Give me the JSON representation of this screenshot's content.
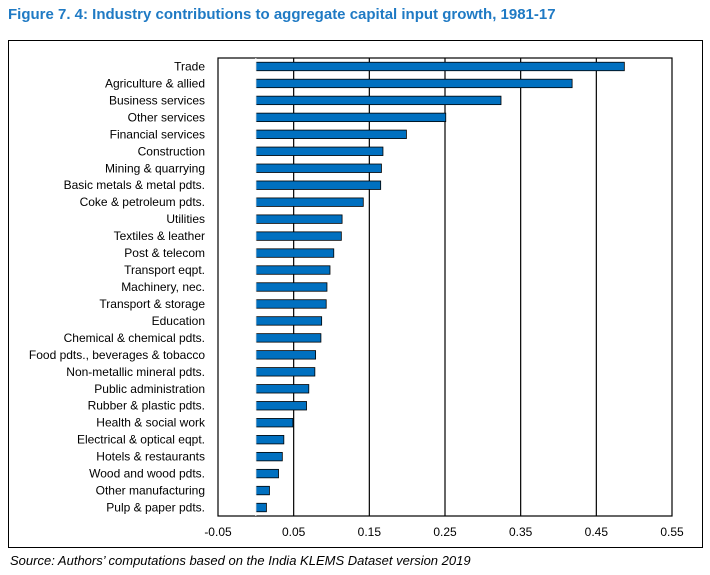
{
  "title": "Figure 7. 4: Industry contributions to aggregate capital input growth, 1981-17",
  "source": "Source: Authors’ computations based on the India KLEMS Dataset version 2019",
  "chart_data": {
    "type": "bar",
    "orientation": "horizontal",
    "categories": [
      "Trade",
      "Agriculture & allied",
      "Business services",
      "Other services",
      "Financial services",
      "Construction",
      "Mining & quarrying",
      "Basic metals & metal pdts.",
      "Coke & petroleum pdts.",
      "Utilities",
      "Textiles & leather",
      "Post & telecom",
      "Transport eqpt.",
      "Machinery, nec.",
      "Transport & storage",
      "Education",
      "Chemical & chemical pdts.",
      "Food pdts., beverages & tobacco",
      "Non-metallic mineral pdts.",
      "Public administration",
      "Rubber & plastic pdts.",
      "Health & social work",
      "Electrical & optical eqpt.",
      "Hotels & restaurants",
      "Wood and wood pdts.",
      "Other manufacturing",
      "Pulp & paper pdts."
    ],
    "values": [
      0.487,
      0.418,
      0.324,
      0.251,
      0.199,
      0.168,
      0.166,
      0.165,
      0.142,
      0.114,
      0.113,
      0.103,
      0.098,
      0.094,
      0.093,
      0.087,
      0.086,
      0.079,
      0.078,
      0.07,
      0.067,
      0.049,
      0.037,
      0.035,
      0.03,
      0.018,
      0.014
    ],
    "xlim": [
      -0.05,
      0.55
    ],
    "xticks": [
      "-0.05",
      "0.05",
      "0.15",
      "0.25",
      "0.35",
      "0.45",
      "0.55"
    ],
    "grid": "vertical",
    "bar_color": "#0070c0",
    "title": "",
    "xlabel": "",
    "ylabel": ""
  }
}
